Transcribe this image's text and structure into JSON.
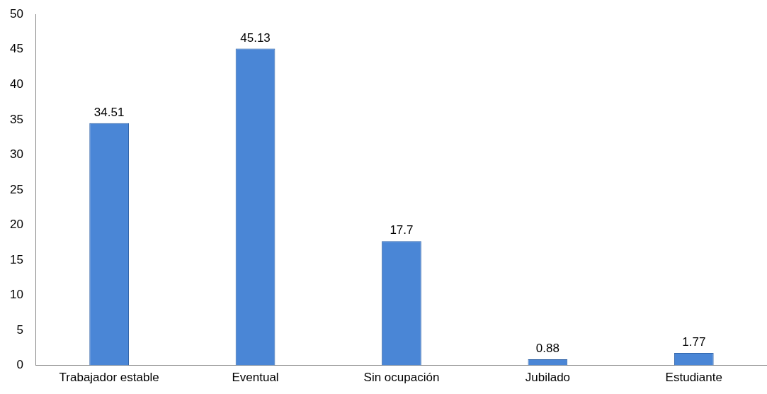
{
  "chart_data": {
    "type": "bar",
    "categories": [
      "Trabajador estable",
      "Eventual",
      "Sin ocupación",
      "Jubilado",
      "Estudiante"
    ],
    "values": [
      34.51,
      45.13,
      17.7,
      0.88,
      1.77
    ],
    "color": "#4a86d6",
    "ylim": [
      0,
      50
    ],
    "yticks": [
      0,
      5,
      10,
      15,
      20,
      25,
      30,
      35,
      40,
      45,
      50
    ],
    "grid": false,
    "legend": false,
    "data_labels": true
  }
}
